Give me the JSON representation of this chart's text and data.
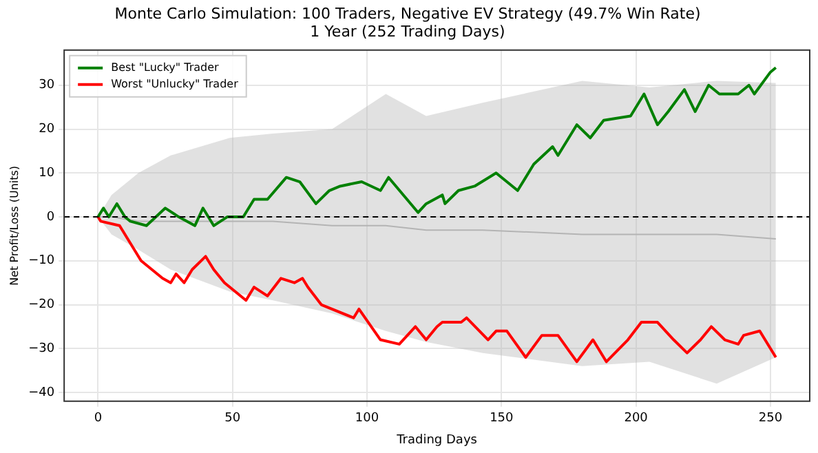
{
  "chart_data": {
    "type": "line",
    "title": "Monte Carlo Simulation: 100 Traders, Negative EV Strategy (49.7% Win Rate)\n1 Year (252 Trading Days)",
    "xlabel": "Trading Days",
    "ylabel": "Net Profit/Loss (Units)",
    "xlim": [
      -12.6,
      264.6
    ],
    "xticks": [
      0,
      50,
      100,
      150,
      200,
      250
    ],
    "ylim": [
      -42,
      38
    ],
    "yticks": [
      -40,
      -30,
      -20,
      -10,
      0,
      10,
      20,
      30
    ],
    "grid": true,
    "legend": "top left",
    "marker": "none",
    "ref_lines": [
      {
        "axis": "y",
        "value": 0,
        "color": "#000000",
        "line_style": "dashed"
      }
    ],
    "series": [
      {
        "color": "#b4b4b4",
        "x": [
          0,
          5,
          15,
          27,
          49,
          65,
          87,
          107,
          122,
          143,
          180,
          205,
          230,
          252
        ],
        "upper": [
          0,
          5,
          10,
          14,
          18,
          19,
          20,
          28,
          23,
          26,
          31,
          29.5,
          31,
          30.5
        ],
        "lower": [
          0,
          -4,
          -7.5,
          -12,
          -17,
          -19,
          -22,
          -26,
          -28.5,
          -31,
          -34,
          -33,
          -38,
          -32
        ],
        "values": [
          0,
          0,
          -1,
          -1,
          -1,
          -1,
          -2,
          -2,
          -3,
          -3,
          -4,
          -4,
          -4,
          -5
        ]
      },
      {
        "name": "Best \"Lucky\" Trader",
        "color": "#008000",
        "x": [
          0,
          2,
          4,
          7,
          10,
          12,
          18,
          25,
          30,
          36,
          39,
          43,
          48,
          54,
          58,
          63,
          70,
          75,
          81,
          86,
          90,
          98,
          105,
          108,
          119,
          122,
          128,
          129,
          134,
          140,
          148,
          152,
          156,
          162,
          169,
          171,
          178,
          183,
          188,
          198,
          203,
          208,
          212,
          218,
          222,
          227,
          231,
          238,
          242,
          244,
          250,
          252
        ],
        "values": [
          0,
          2,
          0,
          3,
          0,
          -1,
          -2,
          2,
          0,
          -2,
          2,
          -2,
          0,
          0,
          4,
          4,
          9,
          8,
          3,
          6,
          7,
          8,
          6,
          9,
          1,
          3,
          5,
          3,
          6,
          7,
          10,
          8,
          6,
          12,
          16,
          14,
          21,
          18,
          22,
          23,
          28,
          21,
          24,
          29,
          24,
          30,
          28,
          28,
          30,
          28,
          33,
          34
        ]
      },
      {
        "name": "Worst \"Unlucky\" Trader",
        "color": "#ff0000",
        "x": [
          0,
          1,
          8,
          16,
          20,
          24,
          27,
          29,
          32,
          35,
          40,
          43,
          47,
          51,
          55,
          58,
          63,
          68,
          73,
          76,
          78,
          83,
          95,
          97,
          105,
          112,
          118,
          122,
          126,
          128,
          135,
          137,
          145,
          148,
          152,
          159,
          165,
          171,
          178,
          184,
          189,
          197,
          202,
          208,
          214,
          219,
          224,
          228,
          233,
          238,
          240,
          246,
          252
        ],
        "values": [
          0,
          -1,
          -2,
          -10,
          -12,
          -14,
          -15,
          -13,
          -15,
          -12,
          -9,
          -12,
          -15,
          -17,
          -19,
          -16,
          -18,
          -14,
          -15,
          -14,
          -16,
          -20,
          -23,
          -21,
          -28,
          -29,
          -25,
          -28,
          -25,
          -24,
          -24,
          -23,
          -28,
          -26,
          -26,
          -32,
          -27,
          -27,
          -33,
          -28,
          -33,
          -28,
          -24,
          -24,
          -28,
          -31,
          -28,
          -25,
          -28,
          -29,
          -27,
          -26,
          -32
        ]
      }
    ]
  }
}
